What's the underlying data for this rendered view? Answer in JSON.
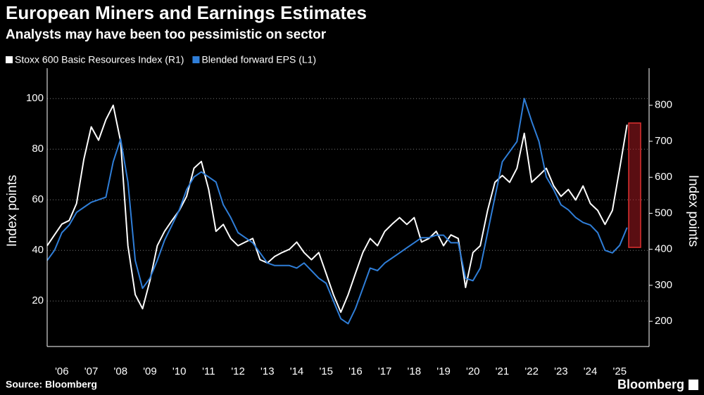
{
  "chart_data": {
    "type": "line",
    "title": "European Miners and Earnings Estimates",
    "subtitle": "Analysts may have been too pessimistic on sector",
    "source": "Source: Bloomberg",
    "brand": "Bloomberg",
    "ylabel": "Index points",
    "y2label": "Index points",
    "x": [
      2006,
      2006.25,
      2006.5,
      2006.75,
      2007,
      2007.25,
      2007.5,
      2007.75,
      2008,
      2008.25,
      2008.5,
      2008.75,
      2009,
      2009.25,
      2009.5,
      2009.75,
      2010,
      2010.25,
      2010.5,
      2010.75,
      2011,
      2011.25,
      2011.5,
      2011.75,
      2012,
      2012.25,
      2012.5,
      2012.75,
      2013,
      2013.25,
      2013.5,
      2013.75,
      2014,
      2014.25,
      2014.5,
      2014.75,
      2015,
      2015.25,
      2015.5,
      2015.75,
      2016,
      2016.25,
      2016.5,
      2016.75,
      2017,
      2017.25,
      2017.5,
      2017.75,
      2018,
      2018.25,
      2018.5,
      2018.75,
      2019,
      2019.25,
      2019.5,
      2019.75,
      2020,
      2020.25,
      2020.5,
      2020.75,
      2021,
      2021.25,
      2021.5,
      2021.75,
      2022,
      2022.25,
      2022.5,
      2022.75,
      2023,
      2023.25,
      2023.5,
      2023.75,
      2024,
      2024.25,
      2024.5,
      2024.75,
      2025,
      2025.25,
      2025.5,
      2025.75
    ],
    "series": [
      {
        "name": "Stoxx 600 Basic Resources Index (R1)",
        "color": "#ffffff",
        "axis": "y2",
        "values": [
          410,
          440,
          470,
          480,
          527,
          650,
          740,
          703,
          760,
          800,
          700,
          410,
          274,
          235,
          313,
          410,
          450,
          480,
          508,
          547,
          625,
          644,
          566,
          450,
          469,
          430,
          410,
          420,
          430,
          371,
          362,
          380,
          391,
          400,
          420,
          391,
          371,
          391,
          333,
          274,
          225,
          274,
          333,
          391,
          430,
          410,
          450,
          470,
          488,
          469,
          488,
          420,
          430,
          450,
          410,
          440,
          430,
          294,
          391,
          410,
          508,
          586,
          605,
          586,
          625,
          722,
          586,
          605,
          625,
          576,
          547,
          566,
          537,
          576,
          527,
          508,
          469,
          508,
          625,
          746
        ]
      },
      {
        "name": "Blended forward EPS (L1)",
        "color": "#2f7ed8",
        "values": [
          36,
          40,
          47,
          50,
          55,
          57,
          59,
          60,
          61,
          75,
          84,
          67,
          36,
          25,
          29,
          36,
          44,
          50,
          56,
          64,
          69,
          71,
          69,
          67,
          58,
          53,
          47,
          45,
          43,
          39,
          35,
          34,
          34,
          34,
          33,
          35,
          32,
          29,
          27,
          20,
          13,
          11,
          17,
          25,
          33,
          32,
          35,
          37,
          39,
          41,
          43,
          45,
          45,
          46,
          46,
          43,
          43,
          29,
          28,
          33,
          47,
          61,
          75,
          79,
          83,
          100,
          91,
          83,
          69,
          64,
          58,
          56,
          53,
          51,
          50,
          47,
          40,
          39,
          42,
          49
        ]
      }
    ],
    "xlim": [
      2006,
      2026.5
    ],
    "xticks": [
      {
        "value": 2006.5,
        "label": "'06"
      },
      {
        "value": 2007.5,
        "label": "'07"
      },
      {
        "value": 2008.5,
        "label": "'08"
      },
      {
        "value": 2009.5,
        "label": "'09"
      },
      {
        "value": 2010.5,
        "label": "'10"
      },
      {
        "value": 2011.5,
        "label": "'11"
      },
      {
        "value": 2012.5,
        "label": "'12"
      },
      {
        "value": 2013.5,
        "label": "'13"
      },
      {
        "value": 2014.5,
        "label": "'14"
      },
      {
        "value": 2015.5,
        "label": "'15"
      },
      {
        "value": 2016.5,
        "label": "'16"
      },
      {
        "value": 2017.5,
        "label": "'17"
      },
      {
        "value": 2018.5,
        "label": "'18"
      },
      {
        "value": 2019.5,
        "label": "'19"
      },
      {
        "value": 2020.5,
        "label": "'20"
      },
      {
        "value": 2021.5,
        "label": "'21"
      },
      {
        "value": 2022.5,
        "label": "'22"
      },
      {
        "value": 2023.5,
        "label": "'23"
      },
      {
        "value": 2024.5,
        "label": "'24"
      },
      {
        "value": 2025.5,
        "label": "'25"
      }
    ],
    "ylim": [
      2,
      112
    ],
    "yticks": [
      20,
      40,
      60,
      80,
      100
    ],
    "y2lim": [
      130,
      903
    ],
    "y2ticks": [
      200,
      300,
      400,
      500,
      600,
      700,
      800
    ],
    "grid": true
  }
}
